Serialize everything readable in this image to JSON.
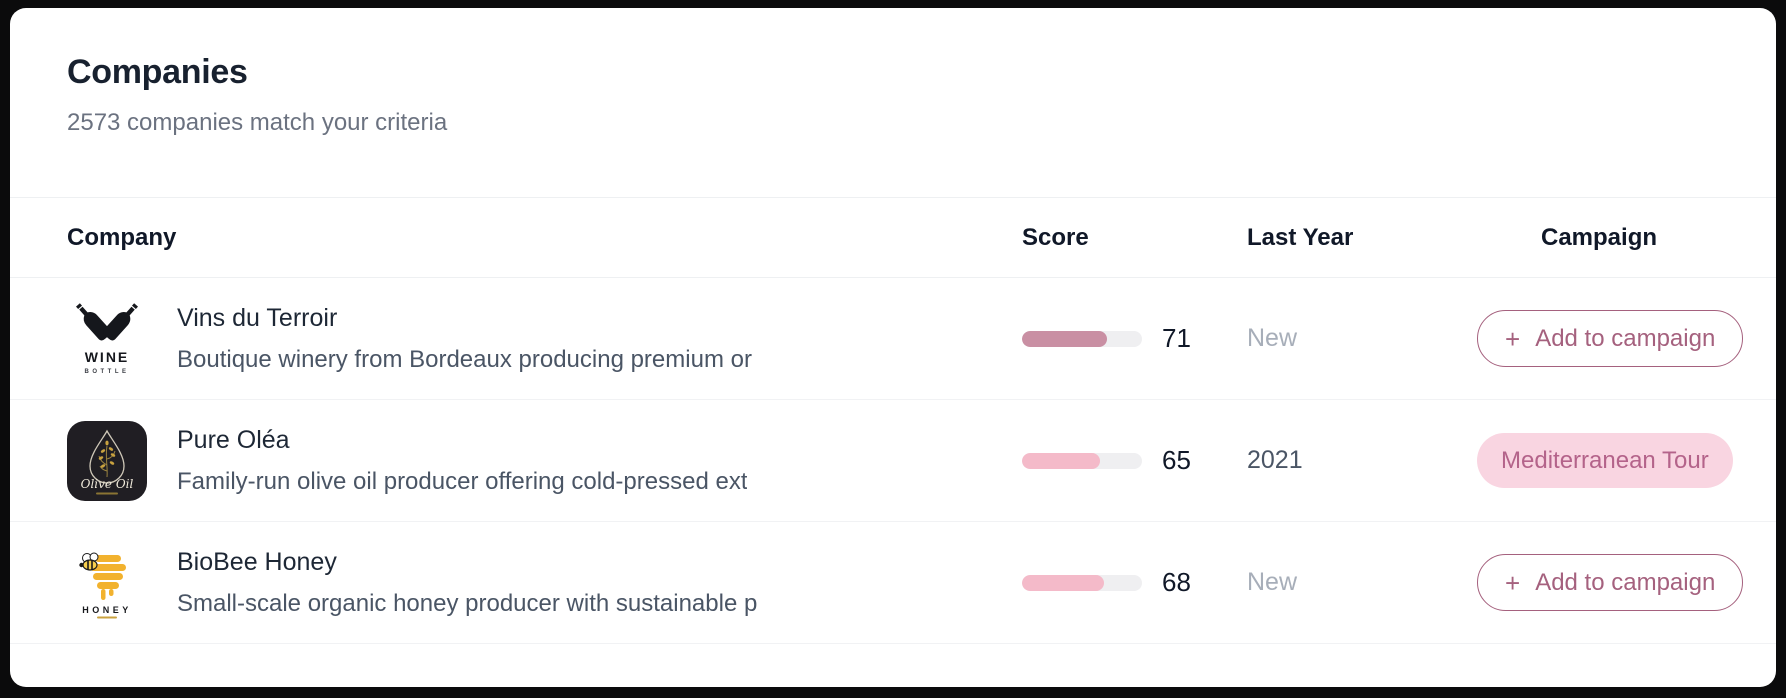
{
  "header": {
    "title": "Companies",
    "subtitle": "2573 companies match your criteria"
  },
  "table": {
    "columns": {
      "company": "Company",
      "score": "Score",
      "last_year": "Last Year",
      "campaign": "Campaign"
    },
    "rows": [
      {
        "name": "Vins du Terroir",
        "description": "Boutique winery from Bordeaux producing premium or",
        "logo": "wine-bottle-logo",
        "logo_text": "WINE",
        "logo_subtext": "BOTTLE",
        "score": 71,
        "score_bar_color": "#c98fa3",
        "last_year": "New",
        "campaign": {
          "type": "add-button",
          "icon": "+",
          "label": "Add to campaign"
        }
      },
      {
        "name": "Pure Oléa",
        "description": "Family-run olive oil producer offering cold-pressed ext",
        "logo": "olive-oil-logo",
        "logo_text": "Olive Oil",
        "score": 65,
        "score_bar_color": "#f4bac9",
        "last_year": "2021",
        "campaign": {
          "type": "badge",
          "label": "Mediterranean Tour"
        }
      },
      {
        "name": "BioBee Honey",
        "description": "Small-scale organic honey producer with sustainable p",
        "logo": "honey-logo",
        "logo_text": "HONEY",
        "score": 68,
        "score_bar_color": "#f4bac9",
        "last_year": "New",
        "campaign": {
          "type": "add-button",
          "icon": "+",
          "label": "Add to campaign"
        }
      }
    ]
  },
  "colors": {
    "accent_rose": "#a5617e",
    "badge_bg": "#f9d5e1",
    "badge_text": "#b4638a",
    "bar_track": "#efeff1",
    "bar_fill_high": "#c98fa3",
    "bar_fill_light": "#f4bac9",
    "outer_background": "#0b0b0c"
  }
}
